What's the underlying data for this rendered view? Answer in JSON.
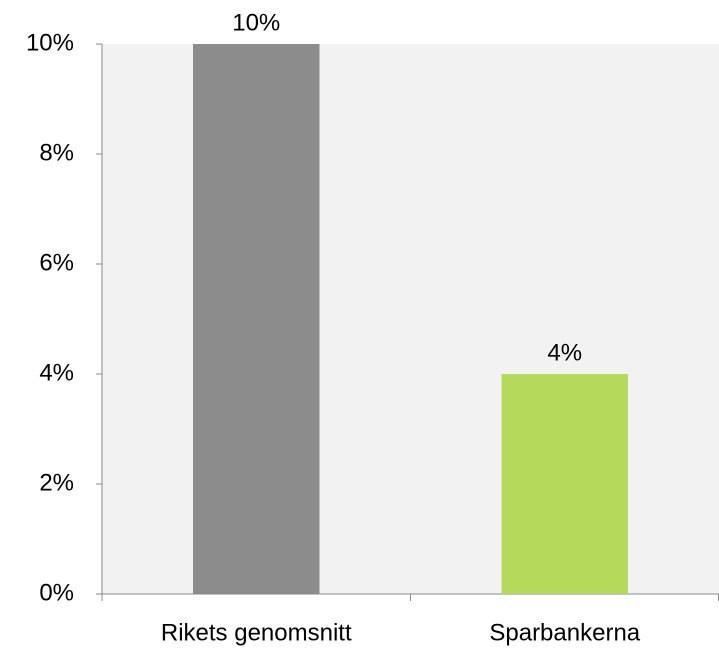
{
  "chart_data": {
    "type": "bar",
    "categories": [
      "Rikets genomsnitt",
      "Sparbankerna"
    ],
    "values": [
      10,
      4
    ],
    "value_labels": [
      "10%",
      "4%"
    ],
    "colors": [
      "#8c8c8c",
      "#b5d95a"
    ],
    "ylim": [
      0,
      10
    ],
    "yticks": [
      {
        "value": 0,
        "label": "0%"
      },
      {
        "value": 2,
        "label": "2%"
      },
      {
        "value": 4,
        "label": "4%"
      },
      {
        "value": 6,
        "label": "6%"
      },
      {
        "value": 8,
        "label": "8%"
      },
      {
        "value": 10,
        "label": "10%"
      }
    ],
    "grid": false
  }
}
